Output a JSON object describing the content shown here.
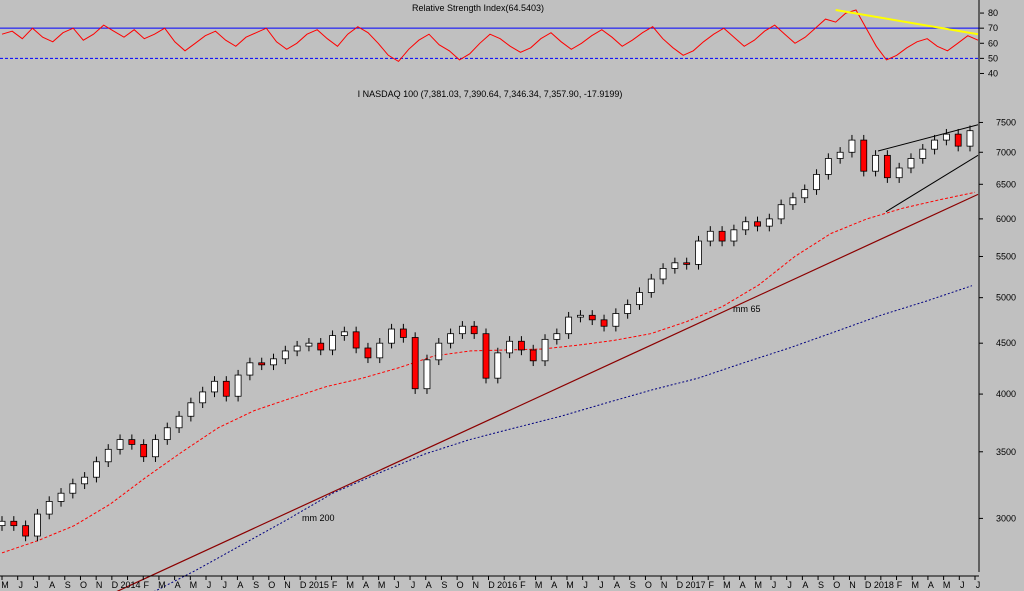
{
  "colors": {
    "background": "#c0c0c0",
    "rsi_line": "#ff0000",
    "rsi_upper_level": "#0000ff",
    "rsi_lower_level": "#0000ff",
    "rsi_trend": "#ffff00",
    "candle_up": "#ffffff",
    "candle_down": "#ff0000",
    "candle_outline": "#000000",
    "trendline_support": "#8b0000",
    "wedge_lines": "#000000",
    "ma65": "#ff0000",
    "ma200": "#000080"
  },
  "chart_data": [
    {
      "type": "line",
      "title": "Relative Strength Index(64.5403)",
      "y_ticks": [
        "80",
        "70",
        "60",
        "50",
        "40"
      ],
      "ylim": [
        37,
        86
      ],
      "levels": [
        70,
        50
      ],
      "legend_position": "none",
      "grid": false,
      "series": [
        {
          "values": [
            66,
            68,
            63,
            70,
            64,
            61,
            67,
            70,
            62,
            66,
            72,
            68,
            64,
            69,
            63,
            66,
            70,
            61,
            55,
            60,
            65,
            68,
            62,
            58,
            64,
            67,
            70,
            61,
            56,
            60,
            66,
            69,
            63,
            58,
            66,
            71,
            67,
            60,
            52,
            48,
            56,
            62,
            66,
            59,
            55,
            49,
            53,
            60,
            66,
            63,
            58,
            54,
            57,
            63,
            67,
            61,
            56,
            60,
            65,
            69,
            64,
            58,
            62,
            67,
            71,
            63,
            57,
            52,
            55,
            61,
            66,
            70,
            64,
            58,
            62,
            68,
            72,
            66,
            60,
            64,
            70,
            76,
            74,
            80,
            82,
            70,
            58,
            49,
            52,
            57,
            61,
            63,
            58,
            55,
            60,
            65,
            62
          ]
        }
      ],
      "trend_segment": {
        "start_index": 82,
        "start_value": 82,
        "end_index": 96,
        "end_value": 66
      }
    },
    {
      "type": "line",
      "title": "I NASDAQ 100 (7,381.03, 7,390.64, 7,346.34, 7,357.90, -17.9199)",
      "scale": "log",
      "ylim": [
        2650,
        7900
      ],
      "y_ticks": [
        3000,
        3500,
        4000,
        4500,
        5000,
        5500,
        6000,
        6500,
        7000,
        7500
      ],
      "x_tick_labels": [
        "M",
        "J",
        "J",
        "A",
        "S",
        "O",
        "N",
        "D",
        "2014",
        "F",
        "M",
        "A",
        "M",
        "J",
        "J",
        "A",
        "S",
        "O",
        "N",
        "D",
        "2015",
        "F",
        "M",
        "A",
        "M",
        "J",
        "J",
        "A",
        "S",
        "O",
        "N",
        "D",
        "2016",
        "F",
        "M",
        "A",
        "M",
        "J",
        "J",
        "A",
        "S",
        "O",
        "N",
        "D",
        "2017",
        "F",
        "M",
        "A",
        "M",
        "J",
        "J",
        "A",
        "S",
        "O",
        "N",
        "D",
        "2018",
        "F",
        "M",
        "A",
        "M",
        "J",
        "J"
      ],
      "grid": false,
      "legend_position": "none",
      "annotations": [
        "mm 65",
        "mm 200"
      ],
      "series": [
        {
          "name": "NASDAQ 100 close",
          "values": [
            2980,
            2950,
            2880,
            3030,
            3120,
            3180,
            3250,
            3300,
            3420,
            3520,
            3600,
            3560,
            3460,
            3600,
            3700,
            3800,
            3920,
            4020,
            4120,
            3980,
            4180,
            4300,
            4280,
            4340,
            4420,
            4470,
            4500,
            4430,
            4580,
            4620,
            4450,
            4350,
            4500,
            4650,
            4560,
            4050,
            4330,
            4500,
            4600,
            4680,
            4600,
            4150,
            4400,
            4520,
            4430,
            4320,
            4540,
            4600,
            4780,
            4800,
            4750,
            4680,
            4820,
            4920,
            5060,
            5220,
            5350,
            5420,
            5400,
            5700,
            5830,
            5700,
            5850,
            5960,
            5900,
            6000,
            6200,
            6300,
            6420,
            6650,
            6900,
            7000,
            7200,
            6700,
            6950,
            6600,
            6750,
            6900,
            7050,
            7200,
            7300,
            7100,
            7358
          ]
        },
        {
          "name": "mm 65",
          "values": [
            2770,
            2850,
            2950,
            3100,
            3300,
            3500,
            3700,
            3850,
            3960,
            4070,
            4150,
            4250,
            4370,
            4420,
            4430,
            4440,
            4480,
            4530,
            4600,
            4730,
            4900,
            5150,
            5500,
            5800,
            6000,
            6150,
            6270,
            6380
          ]
        },
        {
          "name": "mm 200",
          "values": [
            2520,
            2660,
            2820,
            2990,
            3180,
            3330,
            3480,
            3600,
            3700,
            3800,
            3920,
            4040,
            4150,
            4300,
            4450,
            4620,
            4800,
            4960,
            5140
          ]
        }
      ],
      "support_line": {
        "start": 2520,
        "end": 6350
      },
      "wedge_upper": {
        "start": 7020,
        "end": 7460
      },
      "wedge_lower": {
        "start": 6100,
        "end": 6950
      }
    }
  ]
}
